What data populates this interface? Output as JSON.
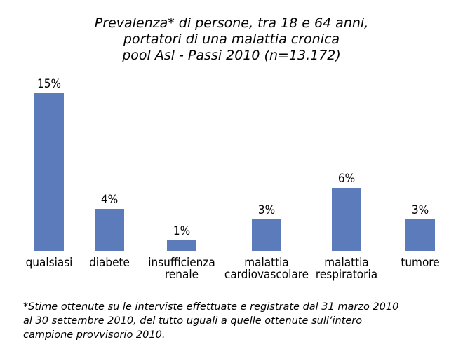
{
  "chart_data": {
    "type": "bar",
    "title_lines": [
      "Prevalenza* di persone, tra 18 e 64 anni,",
      "portatori di una malattia cronica",
      "pool Asl - Passi 2010 (n=13.172)"
    ],
    "categories": [
      [
        "qualsiasi"
      ],
      [
        "diabete"
      ],
      [
        "insufficienza",
        "renale"
      ],
      [
        "malattia",
        "cardiovascolare"
      ],
      [
        "malattia",
        "respiratoria"
      ],
      [
        "tumore"
      ]
    ],
    "values": [
      15,
      4,
      1,
      3,
      6,
      3
    ],
    "value_labels": [
      "15%",
      "4%",
      "1%",
      "3%",
      "6%",
      "3%"
    ],
    "unit": "%",
    "bar_color": "#5B7BBA",
    "grid": false,
    "legend": "none"
  },
  "footnote_lines": [
    "*Stime ottenute su le interviste effettuate e registrate dal 31 marzo 2010",
    "al 30 settembre 2010, del tutto uguali a quelle ottenute sull’intero",
    "campione provvisorio 2010."
  ]
}
